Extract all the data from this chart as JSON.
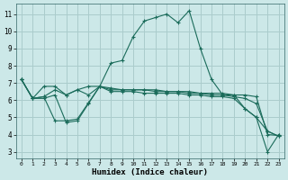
{
  "title": "",
  "xlabel": "Humidex (Indice chaleur)",
  "ylabel": "",
  "background_color": "#cce8e8",
  "grid_color": "#aacccc",
  "line_color": "#1a6b5a",
  "x_ticks": [
    0,
    1,
    2,
    3,
    4,
    5,
    6,
    7,
    8,
    9,
    10,
    11,
    12,
    13,
    14,
    15,
    16,
    17,
    18,
    19,
    20,
    21,
    22,
    23
  ],
  "y_ticks": [
    3,
    4,
    5,
    6,
    7,
    8,
    9,
    10,
    11
  ],
  "xlim": [
    -0.5,
    23.5
  ],
  "ylim": [
    2.6,
    11.6
  ],
  "series1_x": [
    0,
    1,
    2,
    3,
    4,
    5,
    6,
    7,
    8,
    9,
    10,
    11,
    12,
    13,
    14,
    15,
    16,
    17,
    18,
    19,
    20,
    21,
    22,
    23
  ],
  "series1_y": [
    7.2,
    6.1,
    6.2,
    4.8,
    4.8,
    4.9,
    5.85,
    6.8,
    8.15,
    8.3,
    9.7,
    10.6,
    10.8,
    11.0,
    10.5,
    11.2,
    9.0,
    7.2,
    6.3,
    6.3,
    5.5,
    5.0,
    3.0,
    4.0
  ],
  "series2_x": [
    0,
    1,
    2,
    3,
    4,
    5,
    6,
    7,
    8,
    9,
    10,
    11,
    12,
    13,
    14,
    15,
    16,
    17,
    18,
    19,
    20,
    21,
    22,
    23
  ],
  "series2_y": [
    7.2,
    6.1,
    6.8,
    6.8,
    6.3,
    6.6,
    6.8,
    6.8,
    6.7,
    6.6,
    6.6,
    6.6,
    6.6,
    6.5,
    6.5,
    6.5,
    6.4,
    6.4,
    6.4,
    6.3,
    6.3,
    6.2,
    4.0,
    3.95
  ],
  "series3_x": [
    0,
    1,
    2,
    3,
    4,
    5,
    6,
    7,
    8,
    9,
    10,
    11,
    12,
    13,
    14,
    15,
    16,
    17,
    18,
    19,
    20,
    21,
    22,
    23
  ],
  "series3_y": [
    7.2,
    6.1,
    6.2,
    6.6,
    6.3,
    6.6,
    6.3,
    6.8,
    6.6,
    6.6,
    6.6,
    6.6,
    6.5,
    6.5,
    6.5,
    6.4,
    6.4,
    6.3,
    6.3,
    6.2,
    6.1,
    5.8,
    4.2,
    3.9
  ],
  "series4_x": [
    0,
    1,
    2,
    3,
    4,
    5,
    6,
    7,
    8,
    9,
    10,
    11,
    12,
    13,
    14,
    15,
    16,
    17,
    18,
    19,
    20,
    21,
    22,
    23
  ],
  "series4_y": [
    7.2,
    6.1,
    6.1,
    6.3,
    4.7,
    4.8,
    5.8,
    6.8,
    6.5,
    6.5,
    6.5,
    6.4,
    6.4,
    6.4,
    6.4,
    6.3,
    6.3,
    6.2,
    6.2,
    6.1,
    5.5,
    5.0,
    4.2,
    3.9
  ]
}
